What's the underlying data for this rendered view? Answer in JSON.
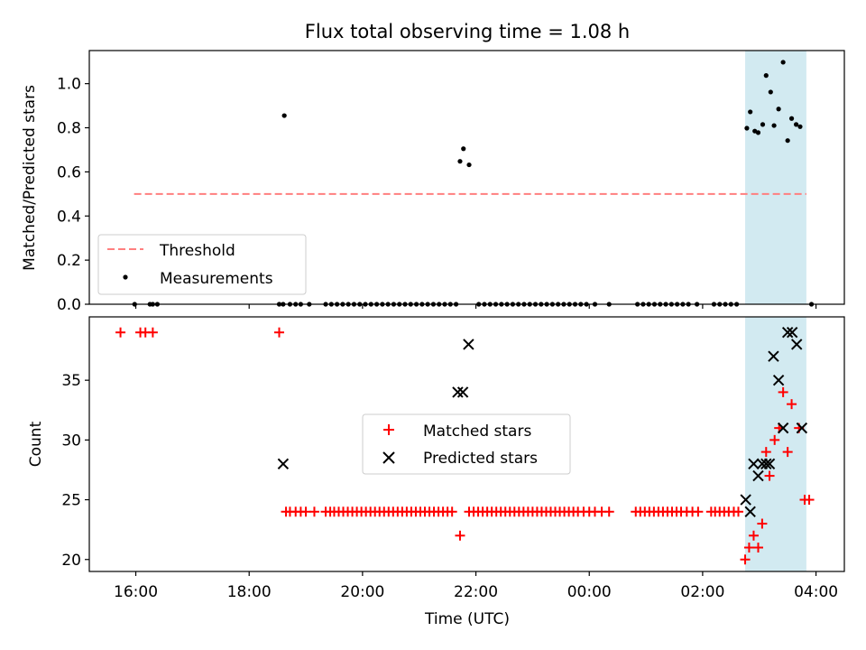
{
  "title": "Flux total observing time = 1.08 h",
  "colors": {
    "threshold": "#ff7f7f",
    "measurement": "#000000",
    "matched": "#ff0000",
    "predicted": "#000000",
    "highlight": "#add8e6"
  },
  "chart_data": [
    {
      "type": "scatter",
      "ylabel": "Matched/Predicted stars",
      "ylim": [
        0,
        1.15
      ],
      "yticks": [
        "0.0",
        "0.2",
        "0.4",
        "0.6",
        "0.8",
        "1.0"
      ],
      "xlim": [
        -0.82,
        12.5
      ],
      "xticks": [
        "16:00",
        "18:00",
        "20:00",
        "22:00",
        "00:00",
        "02:00",
        "04:00"
      ],
      "x_unit": "hours after 16:00 UTC",
      "highlight_span": [
        10.75,
        11.83
      ],
      "legend": {
        "placement": "lower-left",
        "entries": [
          "Threshold",
          "Measurements"
        ]
      },
      "threshold": {
        "name": "Threshold",
        "y": 0.5,
        "x_range": [
          -0.03,
          11.83
        ]
      },
      "series": [
        {
          "name": "Measurements",
          "points": [
            [
              -0.02,
              0
            ],
            [
              0.25,
              0
            ],
            [
              0.3,
              0
            ],
            [
              0.38,
              0
            ],
            [
              2.53,
              0
            ],
            [
              2.6,
              0
            ],
            [
              2.62,
              0.855
            ],
            [
              2.72,
              0
            ],
            [
              2.82,
              0
            ],
            [
              2.91,
              0
            ],
            [
              3.06,
              0
            ],
            [
              3.35,
              0
            ],
            [
              3.45,
              0
            ],
            [
              3.55,
              0
            ],
            [
              3.65,
              0
            ],
            [
              3.75,
              0
            ],
            [
              3.85,
              0
            ],
            [
              3.95,
              0
            ],
            [
              4.05,
              0
            ],
            [
              4.15,
              0
            ],
            [
              4.25,
              0
            ],
            [
              4.35,
              0
            ],
            [
              4.45,
              0
            ],
            [
              4.55,
              0
            ],
            [
              4.65,
              0
            ],
            [
              4.75,
              0
            ],
            [
              4.85,
              0
            ],
            [
              4.95,
              0
            ],
            [
              5.05,
              0
            ],
            [
              5.15,
              0
            ],
            [
              5.25,
              0
            ],
            [
              5.35,
              0
            ],
            [
              5.45,
              0
            ],
            [
              5.55,
              0
            ],
            [
              5.65,
              0
            ],
            [
              5.72,
              0.648
            ],
            [
              5.78,
              0.705
            ],
            [
              5.88,
              0.632
            ],
            [
              6.05,
              0
            ],
            [
              6.15,
              0
            ],
            [
              6.25,
              0
            ],
            [
              6.35,
              0
            ],
            [
              6.45,
              0
            ],
            [
              6.55,
              0
            ],
            [
              6.65,
              0
            ],
            [
              6.75,
              0
            ],
            [
              6.85,
              0
            ],
            [
              6.95,
              0
            ],
            [
              7.05,
              0
            ],
            [
              7.15,
              0
            ],
            [
              7.25,
              0
            ],
            [
              7.35,
              0
            ],
            [
              7.45,
              0
            ],
            [
              7.55,
              0
            ],
            [
              7.65,
              0
            ],
            [
              7.75,
              0
            ],
            [
              7.85,
              0
            ],
            [
              7.95,
              0
            ],
            [
              8.1,
              0
            ],
            [
              8.35,
              0
            ],
            [
              8.85,
              0
            ],
            [
              8.95,
              0
            ],
            [
              9.05,
              0
            ],
            [
              9.15,
              0
            ],
            [
              9.25,
              0
            ],
            [
              9.35,
              0
            ],
            [
              9.45,
              0
            ],
            [
              9.55,
              0
            ],
            [
              9.65,
              0
            ],
            [
              9.75,
              0
            ],
            [
              9.9,
              0
            ],
            [
              10.2,
              0
            ],
            [
              10.3,
              0
            ],
            [
              10.4,
              0
            ],
            [
              10.5,
              0
            ],
            [
              10.6,
              0
            ],
            [
              10.78,
              0.798
            ],
            [
              10.84,
              0.872
            ],
            [
              10.92,
              0.785
            ],
            [
              10.98,
              0.778
            ],
            [
              11.06,
              0.815
            ],
            [
              11.12,
              1.037
            ],
            [
              11.2,
              0.962
            ],
            [
              11.26,
              0.81
            ],
            [
              11.34,
              0.885
            ],
            [
              11.42,
              1.097
            ],
            [
              11.5,
              0.742
            ],
            [
              11.57,
              0.842
            ],
            [
              11.65,
              0.815
            ],
            [
              11.72,
              0.805
            ],
            [
              11.92,
              0
            ]
          ]
        }
      ]
    },
    {
      "type": "scatter",
      "xlabel": "Time (UTC)",
      "ylabel": "Count",
      "ylim": [
        19,
        40.3
      ],
      "yticks": [
        "20",
        "25",
        "30",
        "35"
      ],
      "xlim": [
        -0.82,
        12.5
      ],
      "xticks": [
        "16:00",
        "18:00",
        "20:00",
        "22:00",
        "00:00",
        "02:00",
        "04:00"
      ],
      "x_unit": "hours after 16:00 UTC",
      "highlight_span": [
        10.75,
        11.83
      ],
      "legend": {
        "placement": "center",
        "entries": [
          "Matched stars",
          "Predicted stars"
        ]
      },
      "series": [
        {
          "name": "Matched stars",
          "marker": "plus",
          "points": [
            [
              -0.27,
              39
            ],
            [
              0.08,
              39
            ],
            [
              0.17,
              39
            ],
            [
              0.3,
              39
            ],
            [
              2.53,
              39
            ],
            [
              2.65,
              24
            ],
            [
              2.72,
              24
            ],
            [
              2.82,
              24
            ],
            [
              2.91,
              24
            ],
            [
              3.0,
              24
            ],
            [
              3.15,
              24
            ],
            [
              3.35,
              24
            ],
            [
              3.43,
              24
            ],
            [
              3.5,
              24
            ],
            [
              3.58,
              24
            ],
            [
              3.66,
              24
            ],
            [
              3.74,
              24
            ],
            [
              3.82,
              24
            ],
            [
              3.9,
              24
            ],
            [
              3.98,
              24
            ],
            [
              4.06,
              24
            ],
            [
              4.14,
              24
            ],
            [
              4.22,
              24
            ],
            [
              4.3,
              24
            ],
            [
              4.38,
              24
            ],
            [
              4.46,
              24
            ],
            [
              4.54,
              24
            ],
            [
              4.62,
              24
            ],
            [
              4.7,
              24
            ],
            [
              4.78,
              24
            ],
            [
              4.86,
              24
            ],
            [
              4.94,
              24
            ],
            [
              5.02,
              24
            ],
            [
              5.1,
              24
            ],
            [
              5.18,
              24
            ],
            [
              5.26,
              24
            ],
            [
              5.34,
              24
            ],
            [
              5.42,
              24
            ],
            [
              5.5,
              24
            ],
            [
              5.58,
              24
            ],
            [
              5.72,
              22
            ],
            [
              5.88,
              24
            ],
            [
              5.96,
              24
            ],
            [
              6.04,
              24
            ],
            [
              6.12,
              24
            ],
            [
              6.2,
              24
            ],
            [
              6.28,
              24
            ],
            [
              6.36,
              24
            ],
            [
              6.44,
              24
            ],
            [
              6.52,
              24
            ],
            [
              6.6,
              24
            ],
            [
              6.68,
              24
            ],
            [
              6.76,
              24
            ],
            [
              6.84,
              24
            ],
            [
              6.92,
              24
            ],
            [
              7.0,
              24
            ],
            [
              7.08,
              24
            ],
            [
              7.16,
              24
            ],
            [
              7.24,
              24
            ],
            [
              7.32,
              24
            ],
            [
              7.4,
              24
            ],
            [
              7.48,
              24
            ],
            [
              7.56,
              24
            ],
            [
              7.64,
              24
            ],
            [
              7.72,
              24
            ],
            [
              7.8,
              24
            ],
            [
              7.9,
              24
            ],
            [
              8.0,
              24
            ],
            [
              8.1,
              24
            ],
            [
              8.22,
              24
            ],
            [
              8.35,
              24
            ],
            [
              8.82,
              24
            ],
            [
              8.9,
              24
            ],
            [
              8.98,
              24
            ],
            [
              9.06,
              24
            ],
            [
              9.14,
              24
            ],
            [
              9.22,
              24
            ],
            [
              9.3,
              24
            ],
            [
              9.38,
              24
            ],
            [
              9.46,
              24
            ],
            [
              9.54,
              24
            ],
            [
              9.62,
              24
            ],
            [
              9.72,
              24
            ],
            [
              9.82,
              24
            ],
            [
              9.92,
              24
            ],
            [
              10.15,
              24
            ],
            [
              10.22,
              24
            ],
            [
              10.3,
              24
            ],
            [
              10.38,
              24
            ],
            [
              10.46,
              24
            ],
            [
              10.55,
              24
            ],
            [
              10.63,
              24
            ],
            [
              10.75,
              20
            ],
            [
              10.82,
              21
            ],
            [
              10.9,
              22
            ],
            [
              10.98,
              21
            ],
            [
              11.05,
              23
            ],
            [
              11.12,
              29
            ],
            [
              11.18,
              27
            ],
            [
              11.27,
              30
            ],
            [
              11.35,
              31
            ],
            [
              11.42,
              34
            ],
            [
              11.5,
              29
            ],
            [
              11.57,
              33
            ],
            [
              11.7,
              31
            ],
            [
              11.8,
              25
            ],
            [
              11.88,
              25
            ]
          ]
        },
        {
          "name": "Predicted stars",
          "marker": "x",
          "points": [
            [
              2.6,
              28
            ],
            [
              5.68,
              34
            ],
            [
              5.77,
              34
            ],
            [
              5.87,
              38
            ],
            [
              10.76,
              25
            ],
            [
              10.84,
              24
            ],
            [
              10.9,
              28
            ],
            [
              10.98,
              27
            ],
            [
              11.05,
              28
            ],
            [
              11.12,
              28
            ],
            [
              11.18,
              28
            ],
            [
              11.25,
              37
            ],
            [
              11.34,
              35
            ],
            [
              11.42,
              31
            ],
            [
              11.5,
              39
            ],
            [
              11.58,
              39
            ],
            [
              11.66,
              38
            ],
            [
              11.75,
              31
            ]
          ]
        }
      ]
    }
  ]
}
